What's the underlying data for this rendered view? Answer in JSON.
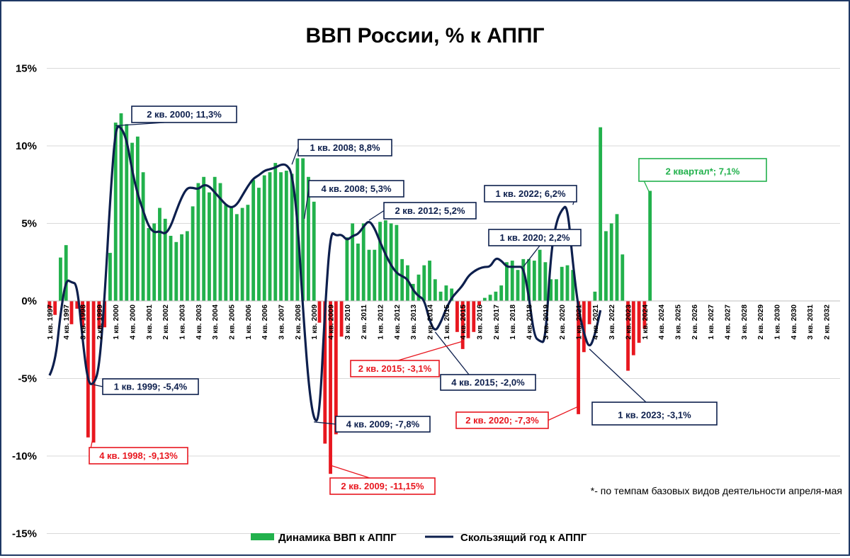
{
  "chart_data": {
    "type": "bar",
    "title": "ВВП России, % к АППГ",
    "ylim": [
      -15,
      15
    ],
    "yticks": [
      "15%",
      "10%",
      "5%",
      "0%",
      "-5%",
      "-10%",
      "-15%"
    ],
    "x_tick_labels": [
      "1 кв. 1997",
      "4 кв. 1997",
      "3 кв. 1998",
      "2 кв. 1999",
      "1 кв. 2000",
      "4 кв. 2000",
      "3 кв. 2001",
      "2 кв. 2002",
      "1 кв. 2003",
      "4 кв. 2003",
      "3 кв. 2004",
      "2 кв. 2005",
      "1 кв. 2006",
      "4 кв. 2006",
      "3 кв. 2007",
      "2 кв. 2008",
      "1 кв. 2009",
      "4 кв. 2009",
      "3 кв. 2010",
      "2 кв. 2011",
      "1 кв. 2012",
      "4 кв. 2012",
      "3 кв. 2013",
      "2 кв. 2014",
      "1 кв. 2015",
      "4 кв. 2015",
      "3 кв. 2016",
      "2 кв. 2017",
      "1 кв. 2018",
      "4 кв. 2018",
      "3 кв. 2019",
      "2 кв. 2020",
      "1 кв. 2021",
      "4 кв. 2021",
      "3 кв. 2022",
      "2 кв. 2023",
      "1 кв. 2024",
      "4 кв. 2024",
      "3 кв. 2025",
      "2 кв. 2026",
      "1 кв. 2027",
      "4 кв. 2027",
      "3 кв. 2028",
      "2 кв. 2029",
      "1 кв. 2030",
      "4 кв. 2030",
      "3 кв. 2031",
      "2 кв. 2032"
    ],
    "series": [
      {
        "name": "Динамика ВВП к АППГ",
        "color_positive": "#22b14c",
        "color_negative": "#e8171f",
        "values": [
          -0.5,
          -0.9,
          2.8,
          3.6,
          -1.5,
          -0.5,
          -1.7,
          -8.8,
          -9.13,
          -1.8,
          -1.7,
          3.1,
          11.5,
          12.1,
          11.4,
          10.2,
          10.6,
          8.3,
          4.7,
          5.0,
          6.0,
          5.3,
          4.2,
          3.8,
          4.3,
          4.5,
          6.1,
          7.6,
          8.0,
          7.0,
          8.0,
          7.6,
          6.2,
          6.0,
          5.6,
          6.0,
          6.2,
          7.8,
          7.3,
          8.1,
          8.3,
          8.9,
          8.3,
          8.4,
          8.2,
          9.2,
          9.2,
          8.0,
          6.4,
          -1.4,
          -9.2,
          -11.15,
          -8.6,
          -2.3,
          4.1,
          5.0,
          3.7,
          5.0,
          3.3,
          3.3,
          5.1,
          5.2,
          5.0,
          4.9,
          2.7,
          2.3,
          1.1,
          1.7,
          2.3,
          2.6,
          1.4,
          0.6,
          1.0,
          0.8,
          -2.0,
          -3.1,
          -2.4,
          -2.0,
          -0.3,
          0.2,
          0.4,
          0.6,
          1.0,
          2.5,
          2.6,
          2.0,
          2.7,
          2.7,
          2.6,
          3.3,
          2.5,
          1.4,
          1.4,
          2.2,
          2.3,
          2.0,
          -7.3,
          -3.3,
          -1.5,
          0.6,
          11.2,
          4.5,
          5.0,
          5.6,
          3.0,
          -4.5,
          -3.5,
          -2.7,
          -1.8,
          7.1
        ],
        "labels_shown": [
          {
            "text": "4 кв. 1998; -9,13%",
            "color": "#e8171f"
          },
          {
            "text": "2 кв. 2009; -11,15%",
            "color": "#e8171f"
          },
          {
            "text": "2 кв. 2015; -3,1%",
            "color": "#e8171f"
          },
          {
            "text": "2 кв. 2020; -7,3%",
            "color": "#e8171f"
          },
          {
            "text": "2 квартал*;  7,1%",
            "color": "#22b14c"
          }
        ]
      },
      {
        "name": "Скользящий год к АППГ",
        "color": "#0d1f4d",
        "values": [
          -4.8,
          -4.1,
          -0.8,
          1.4,
          1.2,
          1.1,
          -2.5,
          -5.3,
          -5.4,
          -4.4,
          0.2,
          6.5,
          11.3,
          11.2,
          10.4,
          8.4,
          6.9,
          5.8,
          4.8,
          4.4,
          4.5,
          4.3,
          4.8,
          5.8,
          6.7,
          7.3,
          7.3,
          7.2,
          7.5,
          7.4,
          7.0,
          6.6,
          6.2,
          6.0,
          6.2,
          6.8,
          7.4,
          7.9,
          8.1,
          8.4,
          8.5,
          8.6,
          8.8,
          8.8,
          8.3,
          5.3,
          -0.5,
          -5.3,
          -7.8,
          -7.6,
          -0.5,
          4.5,
          4.2,
          4.3,
          3.9,
          4.2,
          4.3,
          4.8,
          5.2,
          4.7,
          3.8,
          3.0,
          2.3,
          1.8,
          1.6,
          1.4,
          0.7,
          0.3,
          0.1,
          -1.3,
          -2.0,
          -1.4,
          -0.5,
          0.2,
          0.6,
          1.0,
          1.6,
          1.9,
          2.1,
          2.2,
          2.2,
          2.8,
          2.6,
          2.2,
          2.2,
          2.2,
          2.2,
          0.3,
          -2.3,
          -2.6,
          -2.7,
          3.1,
          5.1,
          5.9,
          6.2,
          2.4,
          -0.5,
          -2.1,
          -3.1,
          -2.2,
          -0.6
        ],
        "labels_shown": [
          {
            "text": "2 кв. 2000; 11,3%"
          },
          {
            "text": "1 кв. 2008; 8,8%"
          },
          {
            "text": "4 кв. 2008; 5,3%"
          },
          {
            "text": "2 кв. 2012; 5,2%"
          },
          {
            "text": "1 кв. 1999; -5,4%"
          },
          {
            "text": "4 кв. 2009; -7,8%"
          },
          {
            "text": "4 кв. 2015; -2,0%"
          },
          {
            "text": "1 кв. 2022; 6,2%"
          },
          {
            "text": "1 кв. 2020; 2,2%"
          },
          {
            "text": "1 кв. 2023; -3,1%"
          }
        ]
      }
    ],
    "footnote": "*- по темпам базовых видов деятельности апреля-мая",
    "grid": true,
    "legend_position": "bottom"
  }
}
